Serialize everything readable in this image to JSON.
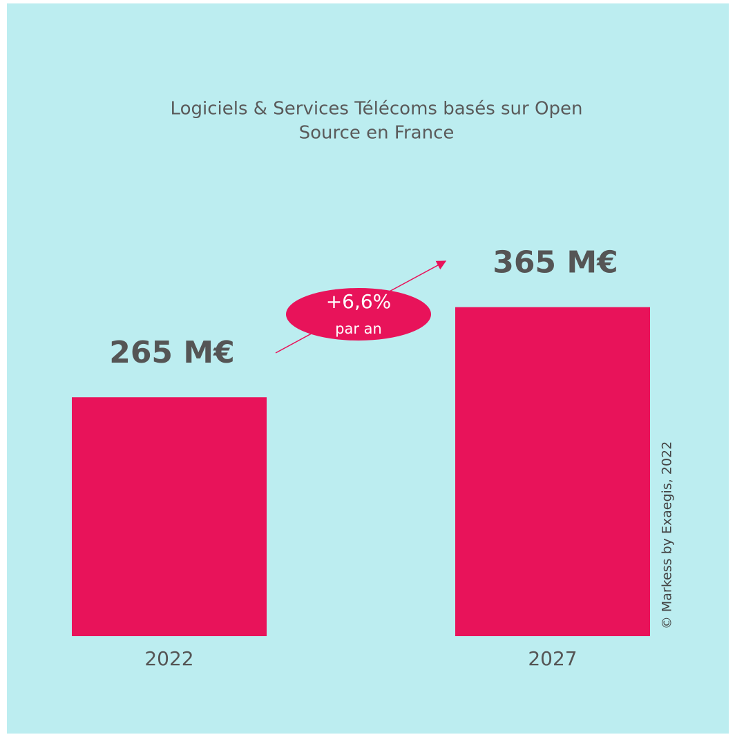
{
  "chart_data": {
    "type": "bar",
    "title": [
      "Logiciels & Services Télécoms basés sur Open",
      "Source en France"
    ],
    "categories": [
      "2022",
      "2027"
    ],
    "values": [
      265,
      365
    ],
    "value_labels": [
      "265 M€",
      "365 M€"
    ],
    "color": "#e8135a",
    "annotation": {
      "text": "+6,6%",
      "subtext": "par an"
    },
    "source": "© Markess by Exaegis, 2022"
  }
}
